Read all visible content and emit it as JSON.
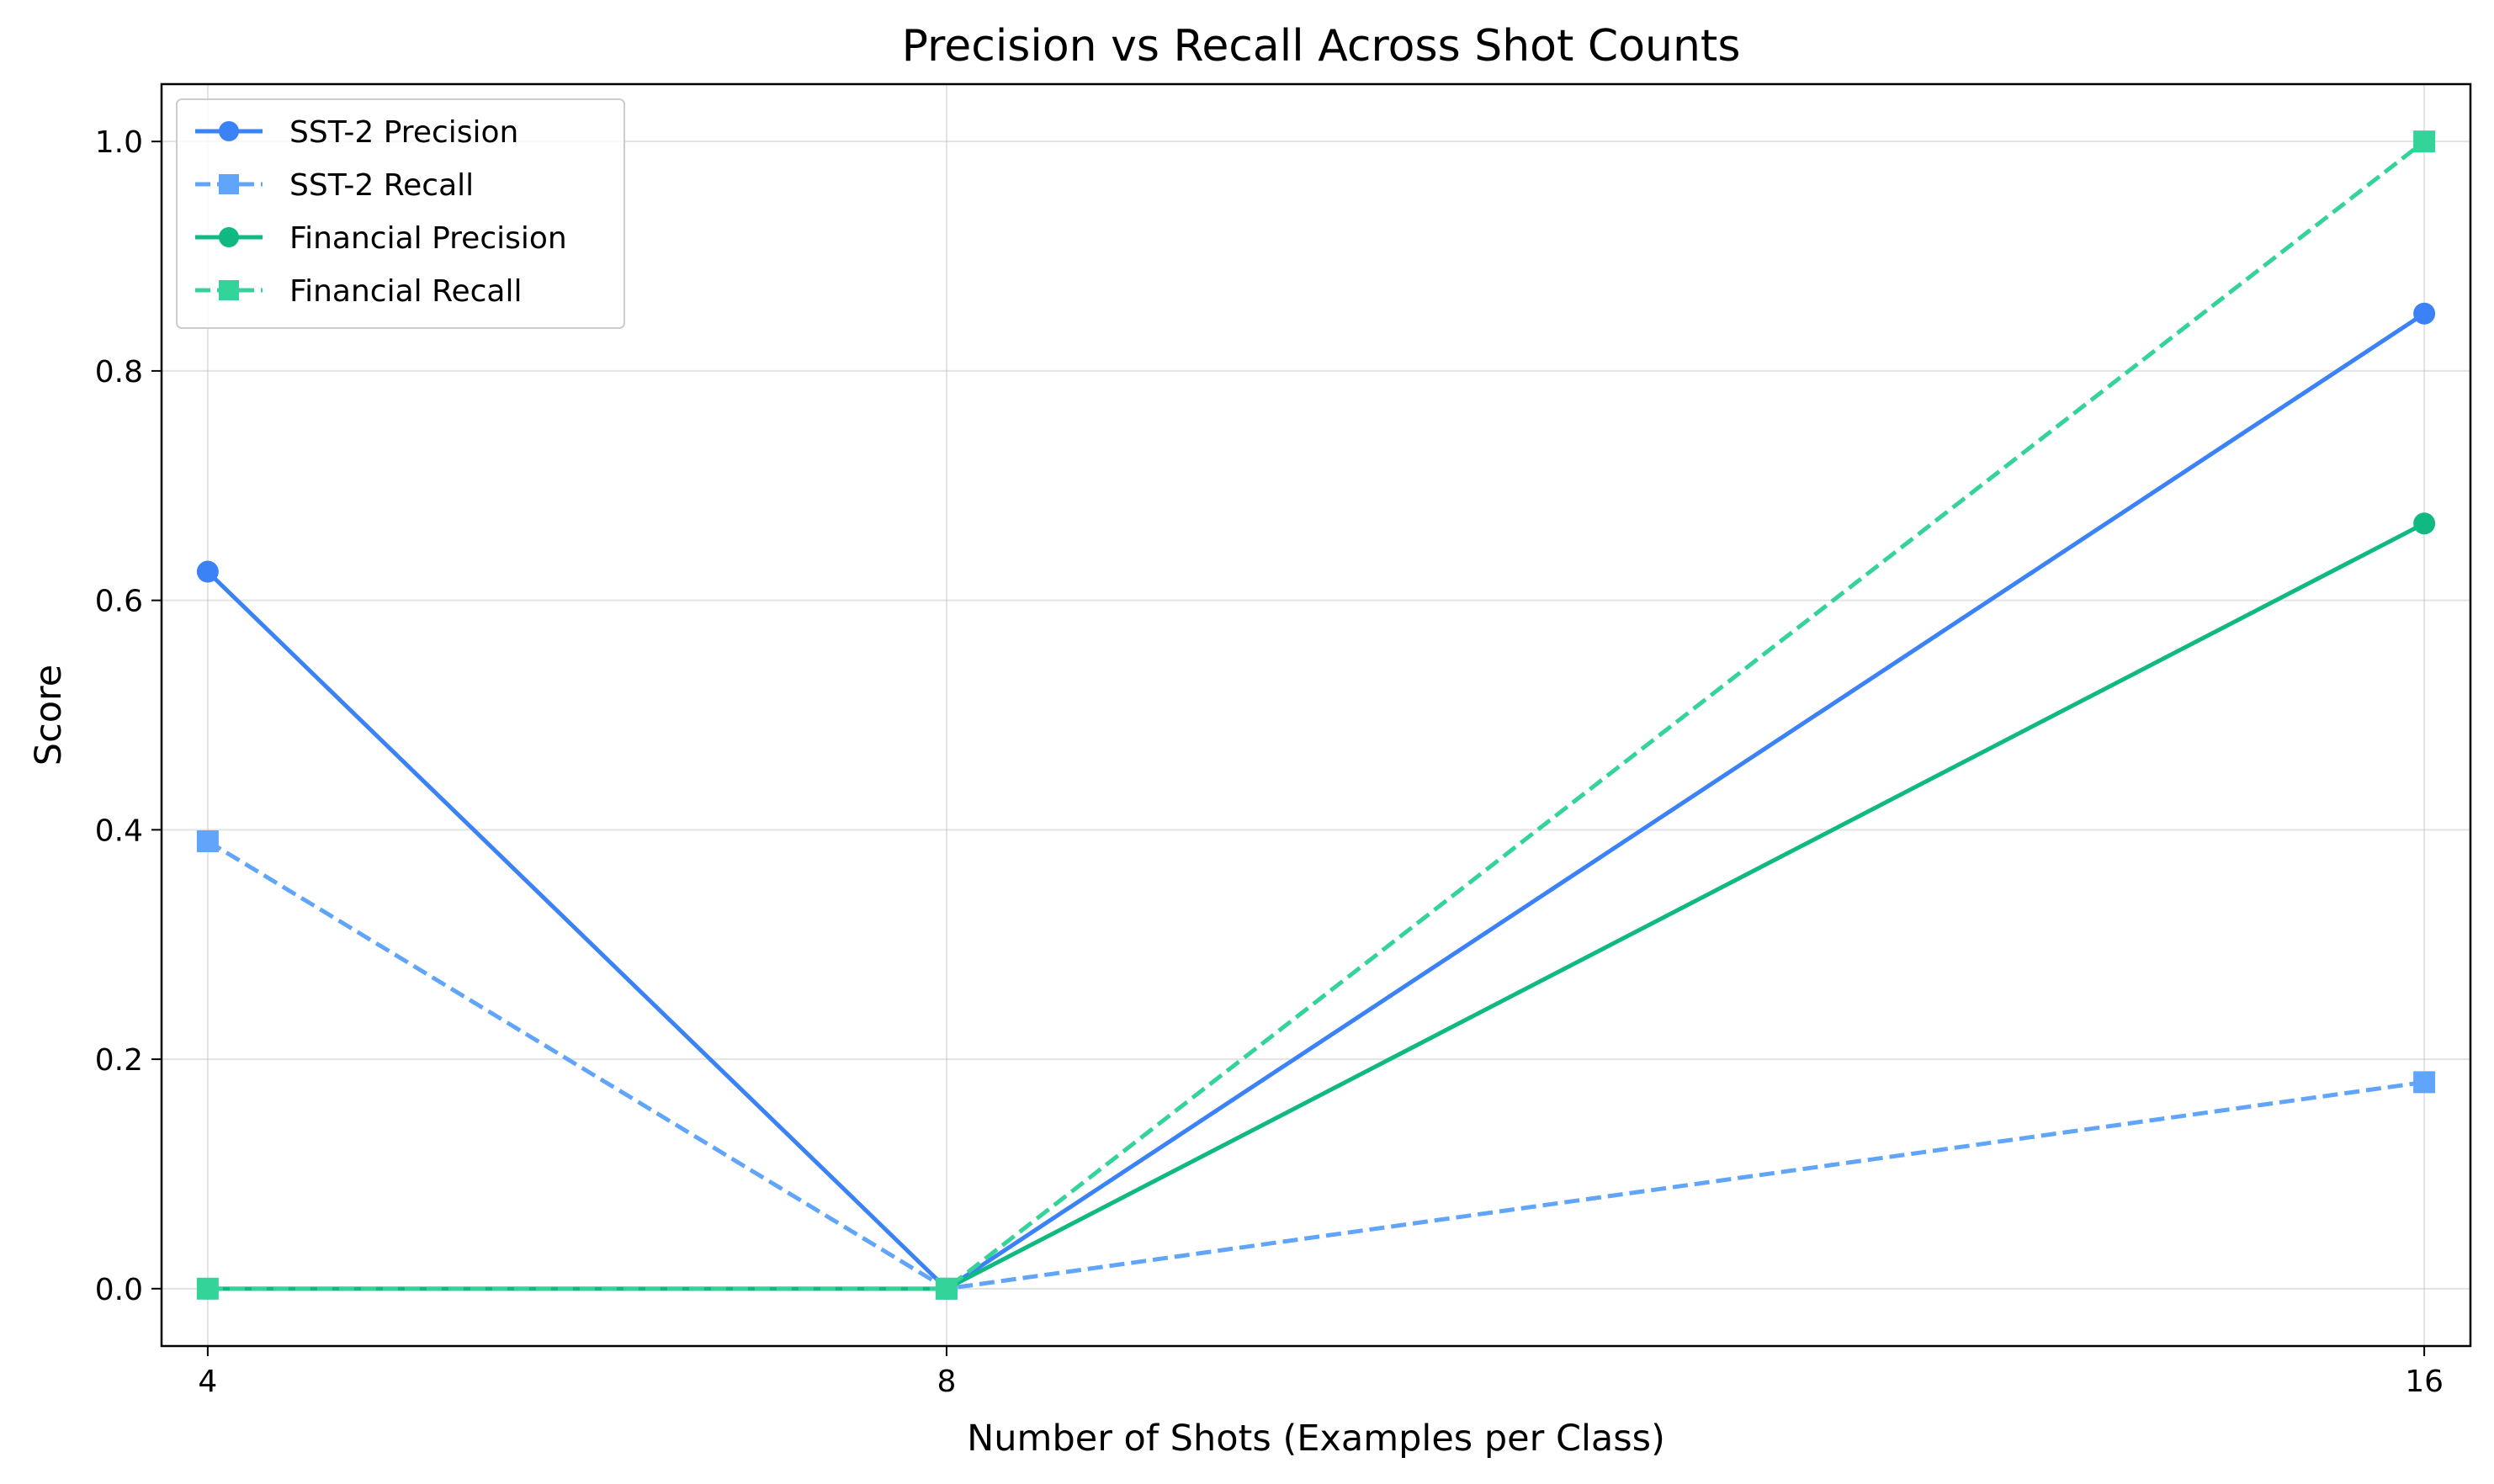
{
  "chart_data": {
    "type": "line",
    "title": "Precision vs Recall Across Shot Counts",
    "xlabel": "Number of Shots (Examples per Class)",
    "ylabel": "Score",
    "x": [
      4,
      8,
      16
    ],
    "x_tick_labels": [
      "4",
      "8",
      "16"
    ],
    "y_ticks": [
      0.0,
      0.2,
      0.4,
      0.6,
      0.8,
      1.0
    ],
    "y_tick_labels": [
      "0.0",
      "0.2",
      "0.4",
      "0.6",
      "0.8",
      "1.0"
    ],
    "xlim": [
      3.75,
      16.25
    ],
    "ylim": [
      -0.05,
      1.05
    ],
    "grid": true,
    "legend_position": "top-left",
    "series": [
      {
        "name": "SST-2 Precision",
        "values": [
          0.625,
          0.0,
          0.85
        ],
        "color": "#3b82f6",
        "line_style": "solid",
        "marker": "circle"
      },
      {
        "name": "SST-2 Recall",
        "values": [
          0.39,
          0.0,
          0.18
        ],
        "color": "#60a5fa",
        "line_style": "dashed",
        "marker": "square"
      },
      {
        "name": "Financial Precision",
        "values": [
          0.0,
          0.0,
          0.667
        ],
        "color": "#10b981",
        "line_style": "solid",
        "marker": "circle"
      },
      {
        "name": "Financial Recall",
        "values": [
          0.0,
          0.0,
          1.0
        ],
        "color": "#34d399",
        "line_style": "dashed",
        "marker": "square"
      }
    ]
  }
}
